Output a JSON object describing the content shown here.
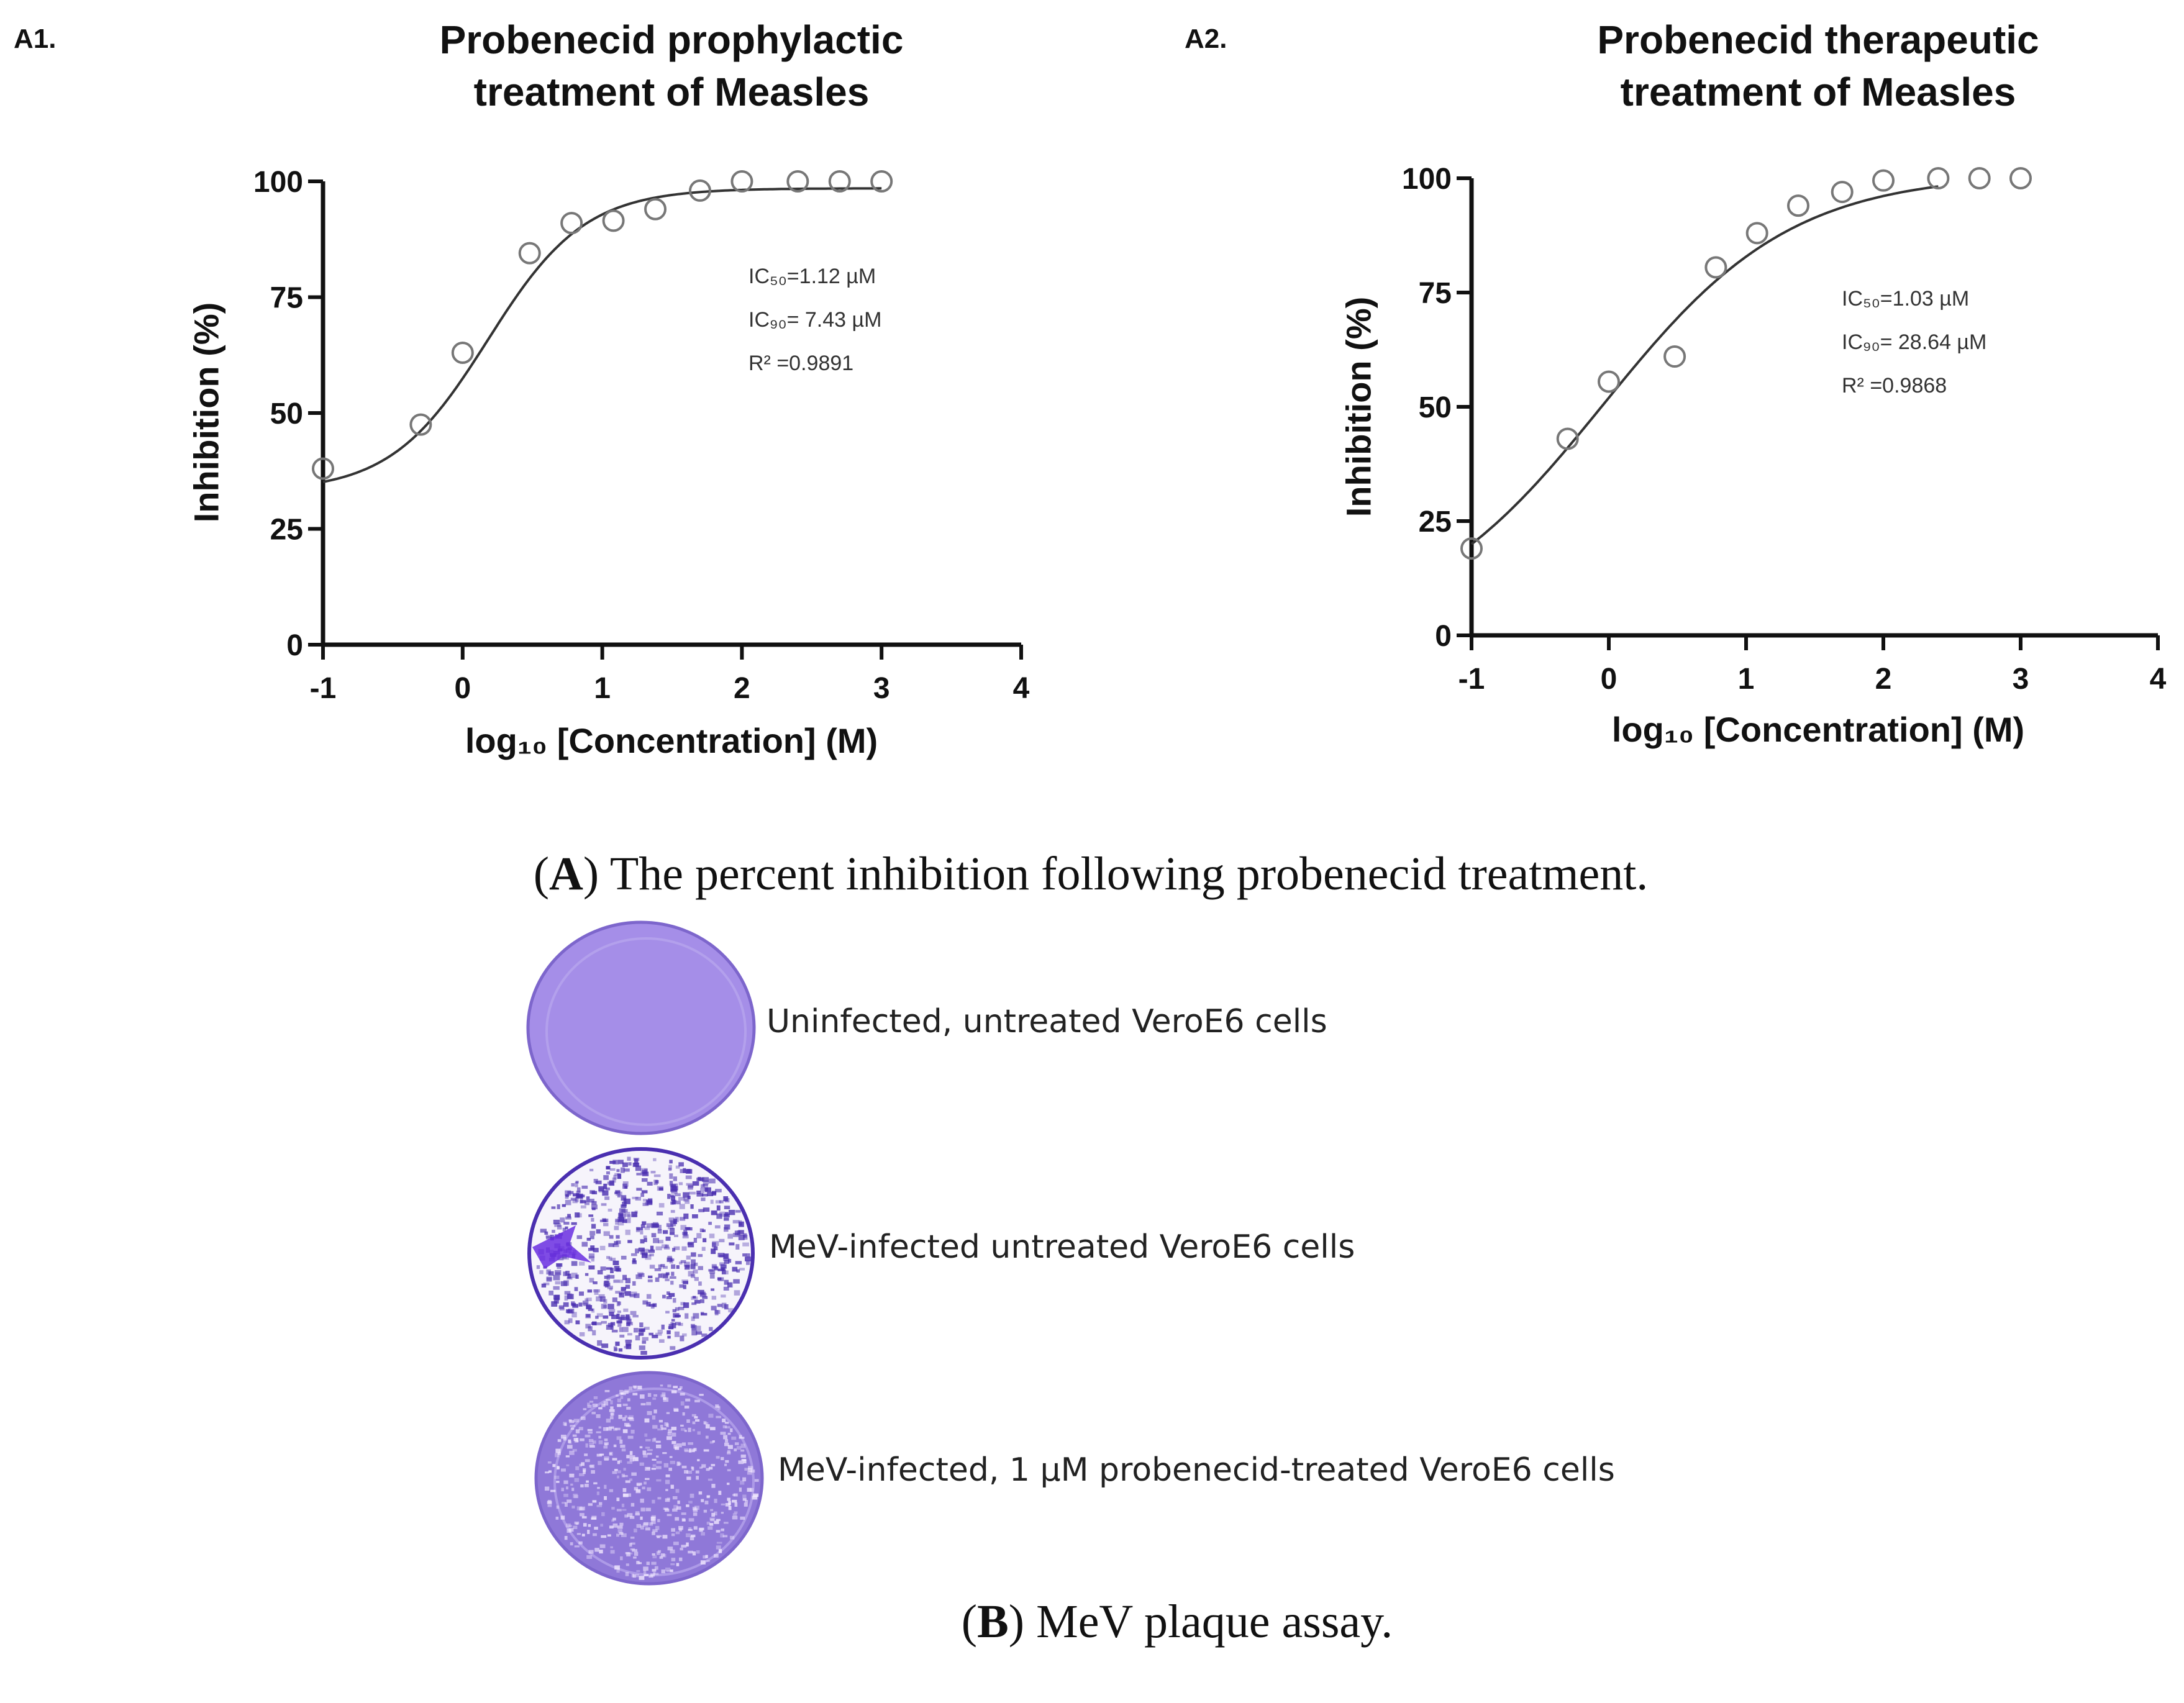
{
  "panels": [
    {
      "tag": "A1.",
      "title_lines": [
        "Probenecid prophylactic",
        "treatment of Measles"
      ],
      "annotations": [
        "IC₅₀=1.12 µM",
        "IC₉₀= 7.43 µM",
        "R² =0.9891"
      ]
    },
    {
      "tag": "A2.",
      "title_lines": [
        "Probenecid therapeutic",
        "treatment of Measles"
      ],
      "annotations": [
        "IC₅₀=1.03 µM",
        "IC₉₀= 28.64 µM",
        "R² =0.9868"
      ]
    }
  ],
  "chart_data": [
    {
      "type": "scatter",
      "title": "Probenecid prophylactic treatment of Measles",
      "xlabel": "log₁₀ [Concentration] (M)",
      "ylabel": "Inhibition (%)",
      "xlim": [
        -1,
        4
      ],
      "ylim": [
        0,
        100
      ],
      "xticks": [
        "-1",
        "0",
        "1",
        "2",
        "3",
        "4"
      ],
      "yticks": [
        "0",
        "25",
        "50",
        "75",
        "100"
      ],
      "grid": false,
      "marker": "open-circle",
      "fit_curve": "sigmoidal dose-response",
      "x": [
        -1,
        -0.3,
        0,
        0.48,
        0.78,
        1.08,
        1.38,
        1.7,
        2.0,
        2.4,
        2.7,
        3.0
      ],
      "y": [
        38,
        47.5,
        63,
        84.5,
        91,
        91.5,
        94,
        98,
        100,
        100,
        100,
        100
      ],
      "color": "#777777"
    },
    {
      "type": "scatter",
      "title": "Probenecid therapeutic treatment of Measles",
      "xlabel": "log₁₀ [Concentration] (M)",
      "ylabel": "Inhibition (%)",
      "xlim": [
        -1,
        4
      ],
      "ylim": [
        0,
        100
      ],
      "xticks": [
        "-1",
        "0",
        "1",
        "2",
        "3",
        "4"
      ],
      "yticks": [
        "0",
        "25",
        "50",
        "75",
        "100"
      ],
      "grid": false,
      "marker": "open-circle",
      "fit_curve": "sigmoidal dose-response",
      "x": [
        -1,
        -0.3,
        0,
        0.48,
        0.78,
        1.08,
        1.38,
        1.7,
        2.0,
        2.4,
        2.7,
        3.0
      ],
      "y": [
        19,
        43,
        55.5,
        61,
        80.5,
        88,
        94,
        97,
        99.5,
        100,
        100,
        100
      ],
      "color": "#777777"
    }
  ],
  "caption_a": {
    "letter": "A",
    "text": " The percent inhibition following probenecid treatment."
  },
  "plates": [
    {
      "label": "Uninfected, untreated VeroE6 cells",
      "color": "#a58ee8"
    },
    {
      "label": "MeV-infected untreated VeroE6 cells",
      "color": "#4a2fb0"
    },
    {
      "label": "MeV-infected, 1 µM probenecid-treated VeroE6 cells",
      "color": "#8f78d8"
    }
  ],
  "caption_b": {
    "letter": "B",
    "text": " MeV plaque assay."
  }
}
